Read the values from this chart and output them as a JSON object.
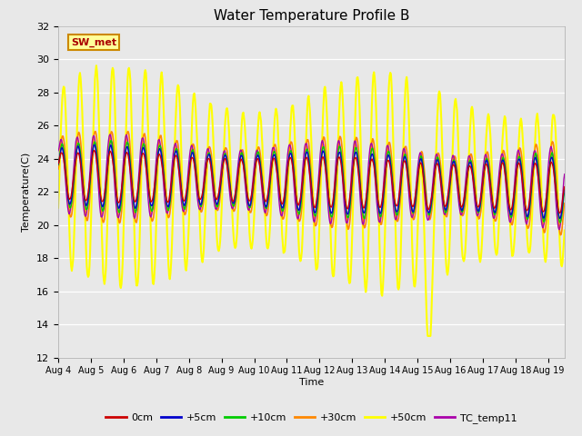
{
  "title": "Water Temperature Profile B",
  "xlabel": "Time",
  "ylabel": "Temperature(C)",
  "ylim": [
    12,
    32
  ],
  "xlim_days": [
    0,
    15.5
  ],
  "x_tick_labels": [
    "Aug 4",
    "Aug 5",
    "Aug 6",
    "Aug 7",
    "Aug 8",
    "Aug 9",
    "Aug 10",
    "Aug 11",
    "Aug 12",
    "Aug 13",
    "Aug 14",
    "Aug 15",
    "Aug 16",
    "Aug 17",
    "Aug 18",
    "Aug 19"
  ],
  "fig_bg": "#e8e8e8",
  "plot_bg": "#e8e8e8",
  "grid_color": "#ffffff",
  "annotation_text": "SW_met",
  "annotation_color": "#aa0000",
  "annotation_bg": "#ffff99",
  "annotation_border": "#cc8800",
  "series": {
    "0cm": {
      "color": "#cc0000",
      "lw": 1.0
    },
    "+5cm": {
      "color": "#0000cc",
      "lw": 1.0
    },
    "+10cm": {
      "color": "#00cc00",
      "lw": 1.0
    },
    "+30cm": {
      "color": "#ff8800",
      "lw": 1.2
    },
    "+50cm": {
      "color": "#ffff00",
      "lw": 1.5
    },
    "TC_temp11": {
      "color": "#aa00aa",
      "lw": 1.0
    }
  }
}
